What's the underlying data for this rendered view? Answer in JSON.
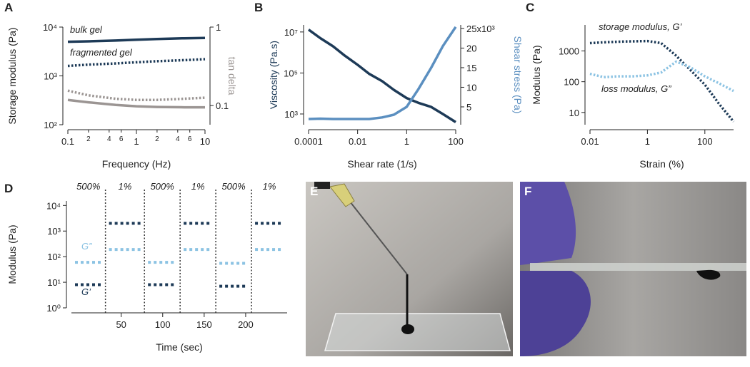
{
  "chart_data": [
    {
      "panel_label": "A",
      "type": "line",
      "xlabel": "Frequency (Hz)",
      "ylabel": "Storage modulus (Pa)",
      "y2label": "tan delta",
      "y2label_color": "#9b9593",
      "xscale": "log",
      "yscale": "log",
      "y2scale": "log",
      "x": [
        0.1,
        0.2,
        0.5,
        1,
        2,
        5,
        10
      ],
      "xlim": [
        0.1,
        10
      ],
      "xticks": [
        0.1,
        {
          "value": 0.2,
          "label": "2"
        },
        {
          "value": 0.4,
          "label": "4"
        },
        {
          "value": 0.6,
          "label": "6"
        },
        1,
        {
          "value": 2,
          "label": "2"
        },
        {
          "value": 4,
          "label": "4"
        },
        {
          "value": 6,
          "label": "6"
        },
        10
      ],
      "ylim": [
        100,
        10000
      ],
      "yticks": [
        {
          "value": 100,
          "label": "10²"
        },
        {
          "value": 1000,
          "label": "10³"
        },
        {
          "value": 10000,
          "label": "10⁴"
        }
      ],
      "y2lim": [
        0.057,
        1
      ],
      "y2ticks": [
        0.1,
        1
      ],
      "series": [
        {
          "name": "bulk gel",
          "color": "#1d3a57",
          "style": "solid",
          "values": [
            5000,
            5100,
            5300,
            5500,
            5700,
            5900,
            6000
          ]
        },
        {
          "name": "fragmented gel",
          "color": "#1d3a57",
          "style": "dotted",
          "values": [
            1600,
            1700,
            1800,
            1900,
            2000,
            2100,
            2200
          ]
        },
        {
          "color": "#9b9593",
          "style": "dotted",
          "axis": "y2",
          "values": [
            0.155,
            0.135,
            0.122,
            0.118,
            0.118,
            0.122,
            0.126
          ]
        },
        {
          "color": "#9b9593",
          "style": "solid",
          "axis": "y2",
          "values": [
            0.118,
            0.11,
            0.102,
            0.098,
            0.096,
            0.095,
            0.095
          ]
        }
      ]
    },
    {
      "panel_label": "B",
      "type": "line",
      "xlabel": "Shear rate (1/s)",
      "ylabel": "Viscosity (Pa.s)",
      "ylabel_color": "#1d3a57",
      "y2label": "Shear stress (Pa)",
      "y2label_color": "#5b8fc0",
      "xscale": "log",
      "yscale": "log",
      "y2scale": "linear",
      "x": [
        0.0001,
        0.0003,
        0.001,
        0.003,
        0.01,
        0.03,
        0.1,
        0.3,
        1,
        3,
        10,
        30,
        100
      ],
      "xlim": [
        0.0001,
        100
      ],
      "xticks": [
        0.0001,
        0.01,
        1,
        100
      ],
      "ylim": [
        300,
        22000000
      ],
      "yticks": [
        {
          "value": 1000,
          "label": "10³"
        },
        {
          "value": 100000,
          "label": "10⁵"
        },
        {
          "value": 10000000,
          "label": "10⁷"
        }
      ],
      "y2lim": [
        450,
        25900
      ],
      "y2ticks": [
        {
          "value": 5000,
          "label": "5"
        },
        {
          "value": 10000,
          "label": "10"
        },
        {
          "value": 15000,
          "label": "15"
        },
        {
          "value": 20000,
          "label": "20"
        },
        {
          "value": 25000,
          "label": "25x10³"
        }
      ],
      "series": [
        {
          "color": "#1d3a57",
          "style": "solid",
          "values": [
            13000000,
            5000000,
            2000000,
            700000,
            250000,
            90000,
            40000,
            15000,
            6000,
            3500,
            2200,
            1000,
            400
          ]
        },
        {
          "color": "#5b8fc0",
          "style": "solid",
          "axis": "y2",
          "values": [
            1900,
            2000,
            1900,
            1900,
            1900,
            1900,
            2300,
            3000,
            5000,
            9500,
            15000,
            20500,
            25400
          ]
        }
      ]
    },
    {
      "panel_label": "C",
      "type": "line",
      "xlabel": "Strain (%)",
      "ylabel": "Modulus (Pa)",
      "xscale": "log",
      "yscale": "log",
      "x": [
        0.01,
        0.03,
        0.1,
        0.3,
        1,
        3,
        10,
        30,
        100,
        300,
        1000
      ],
      "xlim": [
        0.01,
        1000
      ],
      "xticks": [
        0.01,
        1,
        100
      ],
      "ylim": [
        4,
        7000
      ],
      "yticks": [
        10,
        100,
        1000
      ],
      "series": [
        {
          "name": "storage modulus, G’",
          "color": "#1d3a57",
          "style": "dotted",
          "values": [
            1800,
            1900,
            2000,
            2050,
            2100,
            1800,
            700,
            250,
            80,
            20,
            5
          ]
        },
        {
          "name": "loss modulus, G”",
          "color": "#8cc3e3",
          "style": "dotted",
          "values": [
            180,
            140,
            150,
            150,
            160,
            200,
            450,
            300,
            150,
            90,
            50
          ]
        }
      ]
    },
    {
      "panel_label": "D",
      "type": "segments",
      "xlabel": "Time (sec)",
      "ylabel": "Modulus (Pa)",
      "xscale": "linear",
      "yscale": "log",
      "categories": [
        "500%",
        "1%",
        "500%",
        "1%",
        "500%",
        "1%"
      ],
      "phase_boundaries": [
        31,
        78,
        121,
        164,
        207
      ],
      "xlim": [
        -10,
        250
      ],
      "xticks": [
        50,
        100,
        150,
        200
      ],
      "ylim": [
        1,
        15000
      ],
      "yticks": [
        {
          "value": 1,
          "label": "10⁰"
        },
        {
          "value": 10,
          "label": "10¹"
        },
        {
          "value": 100,
          "label": "10²"
        },
        {
          "value": 1000,
          "label": "10³"
        },
        {
          "value": 10000,
          "label": "10⁴"
        }
      ],
      "series": [
        {
          "name": "G’",
          "color": "#1d3a57",
          "values": [
            8,
            2000,
            8,
            2000,
            7,
            2000
          ]
        },
        {
          "name": "G”",
          "color": "#8cc3e3",
          "values": [
            60,
            190,
            60,
            190,
            55,
            190
          ]
        }
      ]
    }
  ],
  "images": [
    {
      "panel_label": "E"
    },
    {
      "panel_label": "F"
    }
  ]
}
